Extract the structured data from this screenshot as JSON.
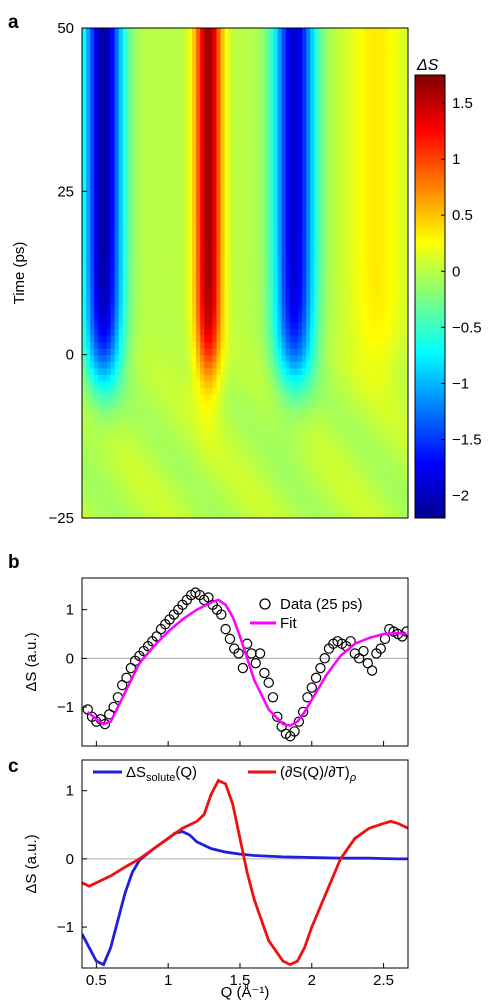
{
  "panel_labels": {
    "a": "a",
    "b": "b",
    "c": "c"
  },
  "chart_data": [
    {
      "panel": "a",
      "type": "heatmap",
      "title": "",
      "xlabel": "",
      "ylabel": "Time (ps)",
      "ylim": [
        -25,
        50
      ],
      "ytick_labels": [
        "50",
        "25",
        "0",
        "−25"
      ],
      "ytick_values": [
        50,
        25,
        0,
        -25
      ],
      "x_range": [
        0.4,
        2.67
      ],
      "colorbar": {
        "label": "ΔS",
        "range": [
          -2.2,
          1.75
        ],
        "tick_values": [
          1.5,
          1,
          0.5,
          0,
          -0.5,
          -1,
          -1.5,
          -2
        ],
        "tick_labels": [
          "1.5",
          "1",
          "0.5",
          "0",
          "−0.5",
          "−1",
          "−1.5",
          "−2"
        ],
        "colors": [
          "#00008f",
          "#0000ff",
          "#007fff",
          "#00ffff",
          "#7fff7f",
          "#ffff00",
          "#ff7f00",
          "#ff0000",
          "#7f0000"
        ]
      },
      "time_onset_ps": 5,
      "features": [
        {
          "q": 0.55,
          "amp": -2.1,
          "width": 0.13
        },
        {
          "q": 1.28,
          "amp": 1.65,
          "width": 0.09
        },
        {
          "q": 1.88,
          "amp": -1.9,
          "width": 0.14
        },
        {
          "q": 2.45,
          "amp": 0.35,
          "width": 0.2
        }
      ]
    },
    {
      "panel": "b",
      "type": "scatter",
      "title": "",
      "xlabel": "",
      "ylabel": "ΔS (a.u.)",
      "xlim": [
        0.4,
        2.67
      ],
      "ylim": [
        -1.8,
        1.65
      ],
      "ytick_values": [
        1,
        0,
        -1
      ],
      "ytick_labels": [
        "1",
        "0",
        "−1"
      ],
      "legend": [
        "Data (25 ps)",
        "Fit"
      ],
      "legend_position": "top-right",
      "series": [
        {
          "name": "Data (25 ps)",
          "style": "markers",
          "color": "#000000",
          "x": [
            0.44,
            0.47,
            0.5,
            0.53,
            0.56,
            0.59,
            0.62,
            0.65,
            0.68,
            0.71,
            0.74,
            0.77,
            0.8,
            0.83,
            0.86,
            0.89,
            0.92,
            0.95,
            0.98,
            1.01,
            1.04,
            1.07,
            1.1,
            1.13,
            1.16,
            1.19,
            1.22,
            1.25,
            1.28,
            1.31,
            1.34,
            1.37,
            1.4,
            1.43,
            1.46,
            1.49,
            1.52,
            1.55,
            1.58,
            1.61,
            1.64,
            1.67,
            1.7,
            1.73,
            1.76,
            1.79,
            1.82,
            1.85,
            1.88,
            1.91,
            1.94,
            1.97,
            2.0,
            2.03,
            2.06,
            2.09,
            2.12,
            2.15,
            2.18,
            2.21,
            2.24,
            2.27,
            2.3,
            2.33,
            2.36,
            2.39,
            2.42,
            2.45,
            2.48,
            2.51,
            2.54,
            2.57,
            2.6,
            2.63,
            2.66
          ],
          "y": [
            -1.05,
            -1.2,
            -1.3,
            -1.25,
            -1.35,
            -1.15,
            -1.0,
            -0.8,
            -0.55,
            -0.4,
            -0.2,
            -0.05,
            0.05,
            0.15,
            0.25,
            0.35,
            0.45,
            0.6,
            0.7,
            0.8,
            0.9,
            1.0,
            1.1,
            1.2,
            1.3,
            1.35,
            1.3,
            1.2,
            1.25,
            1.1,
            1.0,
            0.9,
            0.6,
            0.4,
            0.2,
            0.1,
            -0.2,
            0.3,
            0.1,
            -0.1,
            0.1,
            -0.3,
            -0.5,
            -0.8,
            -1.2,
            -1.4,
            -1.55,
            -1.6,
            -1.5,
            -1.3,
            -1.1,
            -0.8,
            -0.6,
            -0.4,
            -0.2,
            0.0,
            0.2,
            0.3,
            0.35,
            0.3,
            0.25,
            0.35,
            0.1,
            0.0,
            0.15,
            -0.1,
            -0.25,
            0.1,
            0.2,
            0.4,
            0.6,
            0.55,
            0.5,
            0.45,
            0.55
          ]
        },
        {
          "name": "Fit",
          "style": "line",
          "color": "#ff00ff",
          "x": [
            0.44,
            0.5,
            0.55,
            0.6,
            0.7,
            0.8,
            0.9,
            1.0,
            1.1,
            1.2,
            1.3,
            1.35,
            1.4,
            1.45,
            1.5,
            1.55,
            1.6,
            1.7,
            1.8,
            1.85,
            1.9,
            1.95,
            2.0,
            2.1,
            2.2,
            2.3,
            2.4,
            2.5,
            2.6,
            2.66
          ],
          "y": [
            -1.1,
            -1.25,
            -1.35,
            -1.3,
            -0.7,
            -0.1,
            0.25,
            0.55,
            0.8,
            1.0,
            1.15,
            1.2,
            1.1,
            0.85,
            0.45,
            0.0,
            -0.45,
            -1.05,
            -1.35,
            -1.38,
            -1.3,
            -1.1,
            -0.85,
            -0.35,
            0.05,
            0.3,
            0.42,
            0.5,
            0.52,
            0.5
          ]
        }
      ]
    },
    {
      "panel": "c",
      "type": "line",
      "title": "",
      "xlabel": "Q (Å⁻¹)",
      "ylabel": "ΔS (a.u.)",
      "xlim": [
        0.4,
        2.67
      ],
      "ylim": [
        -1.6,
        1.45
      ],
      "xtick_values": [
        0.5,
        1,
        1.5,
        2,
        2.5
      ],
      "xtick_labels": [
        "0.5",
        "1",
        "1.5",
        "2",
        "2.5"
      ],
      "ytick_values": [
        1,
        0,
        -1
      ],
      "ytick_labels": [
        "1",
        "0",
        "−1"
      ],
      "legend_position": "top",
      "series": [
        {
          "name": "ΔS_solute(Q)",
          "legend_main": "ΔS",
          "legend_sub": "solute",
          "legend_tail": "(Q)",
          "color": "#1f1fdd",
          "x": [
            0.4,
            0.45,
            0.5,
            0.55,
            0.6,
            0.65,
            0.7,
            0.75,
            0.8,
            0.9,
            1.0,
            1.05,
            1.1,
            1.15,
            1.2,
            1.3,
            1.4,
            1.5,
            1.6,
            1.8,
            2.0,
            2.2,
            2.4,
            2.6,
            2.67
          ],
          "y": [
            -1.1,
            -1.3,
            -1.5,
            -1.55,
            -1.3,
            -0.9,
            -0.5,
            -0.2,
            -0.02,
            0.15,
            0.3,
            0.38,
            0.4,
            0.35,
            0.25,
            0.15,
            0.1,
            0.07,
            0.05,
            0.03,
            0.02,
            0.01,
            0.01,
            0.0,
            0.0
          ]
        },
        {
          "name": "(∂S(Q)/∂T)ρ",
          "legend_main": "(∂S(Q)/∂T)",
          "legend_sub": "ρ",
          "legend_tail": "",
          "color": "#ee1111",
          "x": [
            0.4,
            0.45,
            0.5,
            0.6,
            0.7,
            0.8,
            0.9,
            1.0,
            1.1,
            1.2,
            1.25,
            1.3,
            1.35,
            1.4,
            1.45,
            1.5,
            1.55,
            1.6,
            1.7,
            1.8,
            1.85,
            1.9,
            1.95,
            2.0,
            2.1,
            2.2,
            2.3,
            2.4,
            2.5,
            2.55,
            2.6,
            2.67
          ],
          "y": [
            -0.35,
            -0.4,
            -0.35,
            -0.25,
            -0.12,
            0.0,
            0.15,
            0.3,
            0.45,
            0.55,
            0.65,
            0.95,
            1.15,
            1.1,
            0.8,
            0.3,
            -0.2,
            -0.6,
            -1.2,
            -1.5,
            -1.55,
            -1.5,
            -1.3,
            -1.0,
            -0.5,
            0.0,
            0.3,
            0.45,
            0.52,
            0.55,
            0.52,
            0.45
          ]
        }
      ]
    }
  ]
}
